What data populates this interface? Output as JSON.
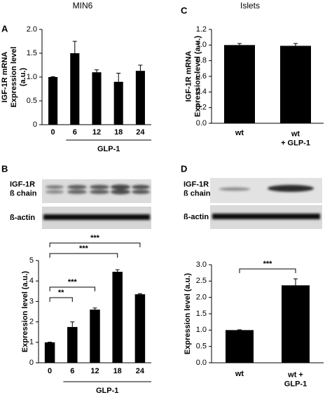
{
  "chart_data": [
    {
      "type": "bar",
      "panel": "A",
      "title": "MIN6",
      "y_label": "IGF-1R mRNA\nExpression level\n(a.u.)",
      "categories": [
        "0",
        "6",
        "12",
        "18",
        "24"
      ],
      "values": [
        1.0,
        1.5,
        1.1,
        0.9,
        1.13
      ],
      "errors": [
        0.01,
        0.25,
        0.05,
        0.18,
        0.12
      ],
      "color": "#000000",
      "group_label": "GLP-1",
      "ylim": [
        0,
        2
      ],
      "yticks": [
        0,
        0.5,
        {
          "value": 1,
          "label": "1.0"
        },
        1.5,
        {
          "value": 2,
          "label": "2.0"
        }
      ]
    },
    {
      "type": "bar",
      "panel": "C",
      "title": "Islets",
      "y_label": "IGF-1R mRNA\nExpression level (a.u.)",
      "categories": [
        "wt",
        "wt\n+ GLP-1"
      ],
      "values": [
        1.0,
        0.99
      ],
      "errors": [
        0.02,
        0.03
      ],
      "color": "#000000",
      "ylim": [
        0,
        1.2
      ],
      "yticks": [
        {
          "value": 0,
          "label": "0.0"
        },
        0.2,
        0.4,
        0.6,
        0.8,
        {
          "value": 1,
          "label": "1.0"
        },
        1.2
      ]
    },
    {
      "type": "bar",
      "panel": "B",
      "y_label": "Expression level (a.u.)",
      "categories": [
        "0",
        "6",
        "12",
        "18",
        "24"
      ],
      "values": [
        1.0,
        1.75,
        2.6,
        4.45,
        3.35
      ],
      "errors": [
        0.01,
        0.25,
        0.08,
        0.1,
        0.03
      ],
      "color": "#000000",
      "group_label": "GLP-1",
      "significance": [
        null,
        "**",
        "***",
        "***",
        "***"
      ],
      "ylim": [
        0,
        5
      ],
      "yticks": [
        0,
        1,
        2,
        3,
        4,
        5
      ]
    },
    {
      "type": "bar",
      "panel": "D",
      "y_label": "Expression level (a.u.)",
      "categories": [
        "wt",
        "wt +\nGLP-1"
      ],
      "values": [
        1.0,
        2.37
      ],
      "errors": [
        0.01,
        0.2
      ],
      "color": "#000000",
      "significance": [
        null,
        "***"
      ],
      "ylim": [
        0,
        3
      ],
      "yticks": [
        {
          "value": 0,
          "label": "0.0"
        },
        0.5,
        {
          "value": 1,
          "label": "1.0"
        },
        1.5,
        {
          "value": 2,
          "label": "2.0"
        },
        2.5,
        {
          "value": 3,
          "label": "3.0"
        }
      ]
    }
  ],
  "blots": [
    {
      "panel": "B",
      "labels": [
        "IGF-1R\nß chain",
        "ß-actin"
      ]
    },
    {
      "panel": "D",
      "labels": [
        "IGF-1R\nß chain",
        "ß-actin"
      ]
    }
  ]
}
